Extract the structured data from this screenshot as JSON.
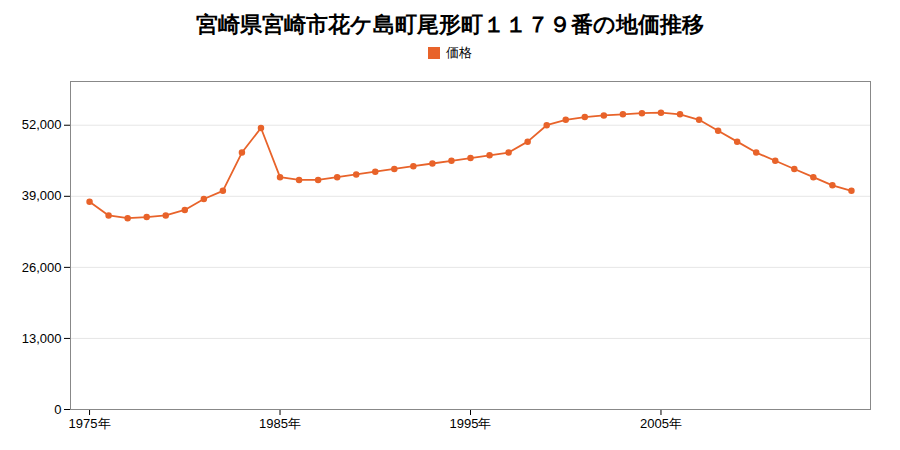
{
  "chart_data": {
    "type": "line",
    "title": "宮崎県宮崎市花ケ島町尾形町１１７９番の地価推移",
    "x": [
      1975,
      1976,
      1977,
      1978,
      1979,
      1980,
      1981,
      1982,
      1983,
      1984,
      1985,
      1986,
      1987,
      1988,
      1989,
      1990,
      1991,
      1992,
      1993,
      1994,
      1995,
      1996,
      1997,
      1998,
      1999,
      2000,
      2001,
      2002,
      2003,
      2004,
      2005,
      2006,
      2007,
      2008,
      2009,
      2010,
      2011,
      2012,
      2013,
      2014,
      2015
    ],
    "series": [
      {
        "name": "価格",
        "color": "#e8632a",
        "marker": "circle",
        "values": [
          38000,
          35500,
          35000,
          35200,
          35500,
          36500,
          38500,
          40000,
          47000,
          51500,
          42500,
          42000,
          42000,
          42500,
          43000,
          43500,
          44000,
          44500,
          45000,
          45500,
          46000,
          46500,
          47000,
          49000,
          52000,
          53000,
          53500,
          53800,
          54000,
          54200,
          54300,
          54000,
          53000,
          51000,
          49000,
          47000,
          45500,
          44000,
          42500,
          41000,
          40000
        ]
      }
    ],
    "xlim": [
      1974,
      2016
    ],
    "xticks": [
      {
        "value": 1975,
        "label": "1975年"
      },
      {
        "value": 1985,
        "label": "1985年"
      },
      {
        "value": 1995,
        "label": "1995年"
      },
      {
        "value": 2005,
        "label": "2005年"
      }
    ],
    "ylim": [
      0,
      60000
    ],
    "yticks": [
      0,
      {
        "value": 13000,
        "label": "13,000"
      },
      {
        "value": 26000,
        "label": "26,000"
      },
      {
        "value": 39000,
        "label": "39,000"
      },
      {
        "value": 52000,
        "label": "52,000"
      }
    ],
    "grid": true,
    "legend": "top"
  }
}
